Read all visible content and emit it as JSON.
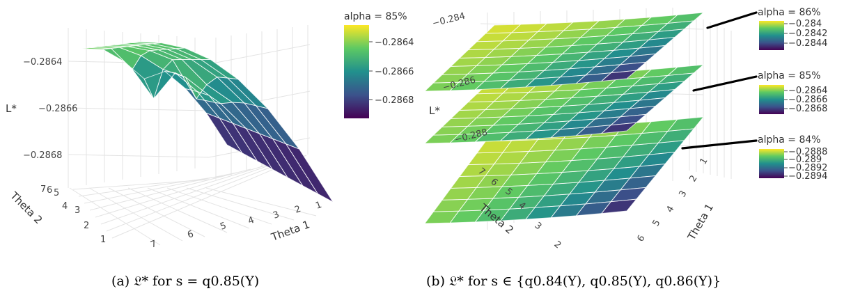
{
  "palette": [
    "#440154",
    "#3b528b",
    "#21908d",
    "#5dc963",
    "#fde725"
  ],
  "chart_data": [
    {
      "type": "surface",
      "caption": "(a) 𝔏* for s = q0.85(Y)",
      "xlabel": "Theta 1",
      "ylabel": "Theta 2",
      "zlabel": "L*",
      "x_ticks": [
        "1",
        "2",
        "3",
        "4",
        "5",
        "6",
        "7"
      ],
      "y_ticks": [
        "1",
        "2",
        "3",
        "4",
        "5",
        "6",
        "7"
      ],
      "z_ticks": [
        "−0.2864",
        "−0.2866",
        "−0.2868"
      ],
      "z_range": [
        -0.287,
        -0.2862
      ],
      "series": [
        {
          "colorbar_title": "alpha = 85%",
          "colorbar_ticks": [
            "−0.2864",
            "−0.2866",
            "−0.2868"
          ],
          "colorbar_range": [
            -0.2869,
            -0.2863
          ]
        }
      ]
    },
    {
      "type": "surface",
      "caption": "(b) 𝔏* for s ∈ {q0.84(Y), q0.85(Y), q0.86(Y)}",
      "xlabel": "Theta 1",
      "ylabel": "Theta 2",
      "zlabel": "L*",
      "x_ticks": [
        "1",
        "2",
        "3",
        "4",
        "5",
        "6"
      ],
      "y_ticks": [
        "2",
        "3",
        "4",
        "5",
        "6",
        "7"
      ],
      "z_ticks": [
        "−0.284",
        "−0.286",
        "−0.288"
      ],
      "series": [
        {
          "colorbar_title": "alpha = 86%",
          "colorbar_ticks": [
            "−0.284",
            "−0.2842",
            "−0.2844"
          ]
        },
        {
          "colorbar_title": "alpha = 85%",
          "colorbar_ticks": [
            "−0.2864",
            "−0.2866",
            "−0.2868"
          ]
        },
        {
          "colorbar_title": "alpha = 84%",
          "colorbar_ticks": [
            "−0.2888",
            "−0.289",
            "−0.2892",
            "−0.2894"
          ]
        }
      ]
    }
  ]
}
